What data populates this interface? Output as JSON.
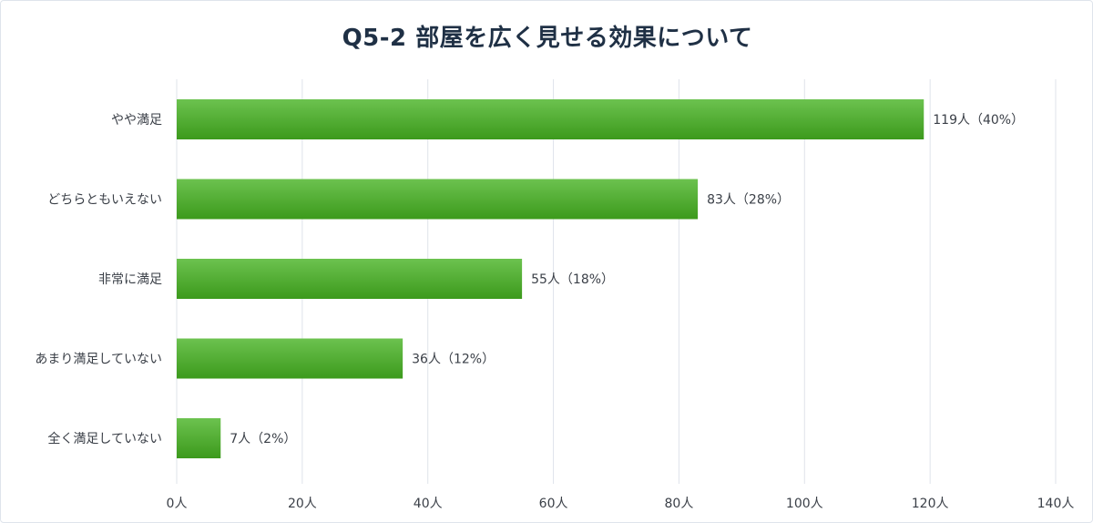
{
  "chart_data": {
    "type": "bar",
    "orientation": "horizontal",
    "title": "Q5-2 部屋を広く見せる効果について",
    "categories": [
      "やや満足",
      "どちらともいえない",
      "非常に満足",
      "あまり満足していない",
      "全く満足していない"
    ],
    "values": [
      119,
      83,
      55,
      36,
      7
    ],
    "data_labels": [
      "119人（40%）",
      "83人（28%）",
      "55人（18%）",
      "36人（12%）",
      "7人（2%）"
    ],
    "xlim": [
      0,
      140
    ],
    "x_ticks": [
      0,
      20,
      40,
      60,
      80,
      100,
      120,
      140
    ],
    "x_tick_labels": [
      "0人",
      "20人",
      "40人",
      "60人",
      "80人",
      "100人",
      "120人",
      "140人"
    ],
    "grid": "vertical",
    "legend": "none",
    "colors": {
      "bar_top": "#6cc24f",
      "bar_bottom": "#3c9a1c",
      "grid": "#dfe3ea",
      "text": "#3a3f47",
      "title": "#1f3045"
    }
  }
}
